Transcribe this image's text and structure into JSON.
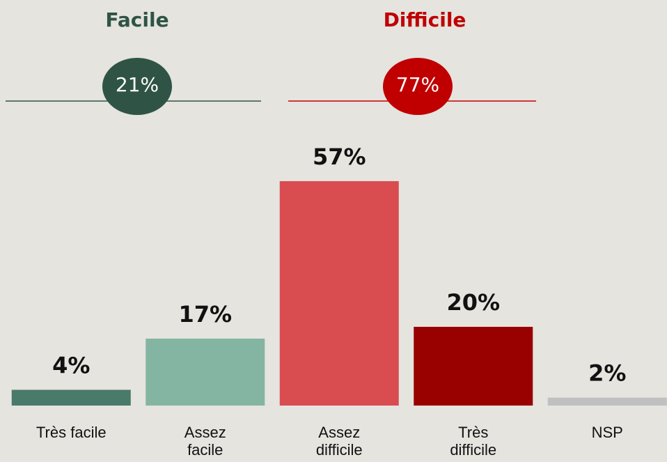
{
  "chart_data": {
    "type": "bar",
    "categories": [
      "Très facile",
      "Assez facile",
      "Assez difficile",
      "Très difficile",
      "NSP"
    ],
    "values": [
      4,
      17,
      57,
      20,
      2
    ],
    "value_labels": [
      "4%",
      "17%",
      "57%",
      "20%",
      "2%"
    ],
    "colors": [
      "#4a7a69",
      "#83b5a2",
      "#d94c50",
      "#990000",
      "#c0c0c0"
    ],
    "ylim": [
      0,
      100
    ],
    "groups": [
      {
        "name": "Facile",
        "value": 21,
        "value_label": "21%",
        "color": "#2f5446"
      },
      {
        "name": "Difficile",
        "value": 77,
        "value_label": "77%",
        "color": "#c00000"
      }
    ]
  }
}
